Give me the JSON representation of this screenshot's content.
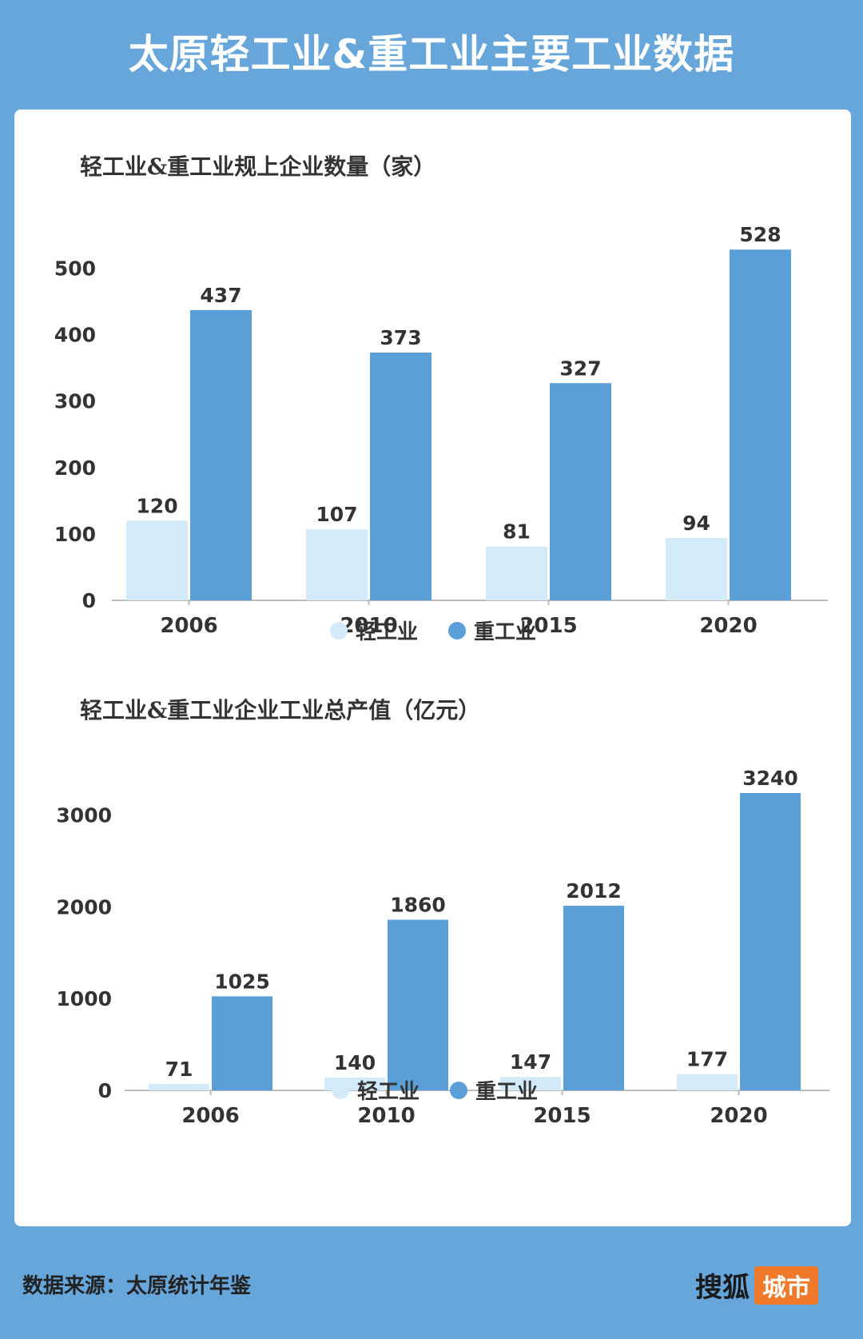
{
  "page": {
    "title": "太原轻工业&重工业主要工业数据"
  },
  "colors": {
    "background": "#66a6da",
    "light": "#d3ebf9",
    "heavy": "#5b9fd8",
    "axis": "#bbbbbb",
    "text": "#333333",
    "brand_tag": "#f07a2a"
  },
  "charts": [
    {
      "title": "轻工业&重工业规上企业数量（家）",
      "legend": [
        "轻工业",
        "重工业"
      ]
    },
    {
      "title": "轻工业&重工业企业工业总产值（亿元）",
      "legend": [
        "轻工业",
        "重工业"
      ]
    }
  ],
  "chart_data": [
    {
      "type": "bar",
      "title": "轻工业&重工业规上企业数量（家）",
      "categories": [
        "2006",
        "2010",
        "2015",
        "2020"
      ],
      "series": [
        {
          "name": "轻工业",
          "values": [
            120,
            107,
            81,
            94
          ]
        },
        {
          "name": "重工业",
          "values": [
            437,
            373,
            327,
            528
          ]
        }
      ],
      "yticks": [
        0,
        100,
        200,
        300,
        400,
        500
      ],
      "ylim": [
        0,
        500
      ],
      "legend_position": "bottom",
      "grid": false
    },
    {
      "type": "bar",
      "title": "轻工业&重工业企业工业总产值（亿元）",
      "categories": [
        "2006",
        "2010",
        "2015",
        "2020"
      ],
      "series": [
        {
          "name": "轻工业",
          "values": [
            71,
            140,
            147,
            177
          ]
        },
        {
          "name": "重工业",
          "values": [
            1025,
            1860,
            2012,
            3240
          ]
        }
      ],
      "yticks": [
        0,
        1000,
        2000,
        3000
      ],
      "ylim": [
        0,
        3000
      ],
      "legend_position": "bottom",
      "grid": false
    }
  ],
  "footer": {
    "source": "数据来源：太原统计年鉴",
    "brand": "搜狐",
    "brand_tag": "城市"
  }
}
